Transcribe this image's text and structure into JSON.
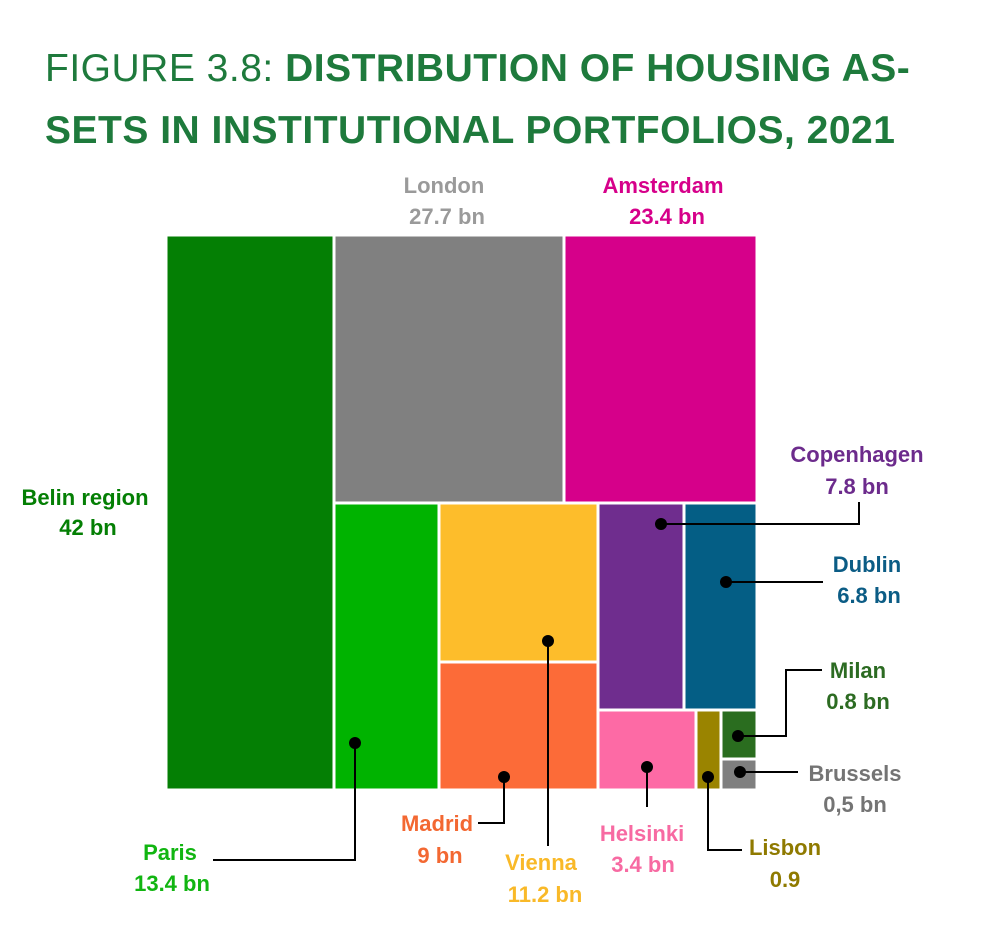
{
  "title": {
    "prefix": "FIGURE 3.8: ",
    "main": "DISTRIBUTION OF HOUSING AS-SETS IN INSTITUTIONAL PORTFOLIOS, 2021"
  },
  "chart_data": {
    "type": "treemap",
    "title": "FIGURE 3.8: DISTRIBUTION OF HOUSING AS-SETS IN INSTITUTIONAL PORTFOLIOS, 2021",
    "unit": "bn",
    "items": [
      {
        "name": "Belin region",
        "value": 42,
        "label": "42 bn",
        "color": "#047f04"
      },
      {
        "name": "London",
        "value": 27.7,
        "label": "27.7 bn",
        "color": "#808080",
        "text_color": "#9a9a9a"
      },
      {
        "name": "Amsterdam",
        "value": 23.4,
        "label": "23.4 bn",
        "color": "#d6008a"
      },
      {
        "name": "Paris",
        "value": 13.4,
        "label": "13.4 bn",
        "color": "#00b300",
        "text_color": "#11b511"
      },
      {
        "name": "Vienna",
        "value": 11.2,
        "label": "11.2 bn",
        "color": "#fdbd2b",
        "text_color": "#f9b928"
      },
      {
        "name": "Madrid",
        "value": 9,
        "label": "9 bn",
        "color": "#fc6b38",
        "text_color": "#f36832"
      },
      {
        "name": "Copenhagen",
        "value": 7.8,
        "label": "7.8 bn",
        "color": "#6f2d8e",
        "text_color": "#6c2b8c"
      },
      {
        "name": "Dublin",
        "value": 6.8,
        "label": "6.8 bn",
        "color": "#045e85",
        "text_color": "#0b5c85"
      },
      {
        "name": "Helsinki",
        "value": 3.4,
        "label": "3.4 bn",
        "color": "#fd6aa5",
        "text_color": "#f76aa2"
      },
      {
        "name": "Lisbon",
        "value": 0.9,
        "label": "0.9",
        "color": "#9a8400",
        "text_color": "#8f7a00"
      },
      {
        "name": "Milan",
        "value": 0.8,
        "label": "0.8 bn",
        "color": "#2a6d1f",
        "text_color": "#2c6b22"
      },
      {
        "name": "Brussels",
        "value": 0.5,
        "label": "0,5 bn",
        "color": "#7f7f7f",
        "text_color": "#747474"
      }
    ]
  }
}
